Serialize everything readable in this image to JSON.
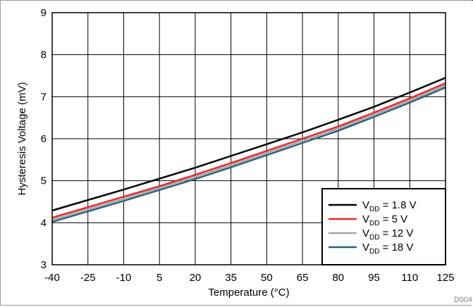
{
  "chart_data": {
    "type": "line",
    "xlabel": "Temperature (°C)",
    "ylabel": "Hysteresis Voltage (mV)",
    "xlim": [
      -40,
      125
    ],
    "ylim": [
      3,
      9
    ],
    "xticks": [
      -40,
      -25,
      -10,
      5,
      20,
      35,
      50,
      65,
      80,
      95,
      110,
      125
    ],
    "yticks": [
      3,
      4,
      5,
      6,
      7,
      8,
      9
    ],
    "grid": true,
    "legend_position": "bottom-right",
    "figure_id": "D004",
    "series": [
      {
        "legend_label": "1.8 V",
        "color": "#000000",
        "x": [
          -40,
          -25,
          -10,
          5,
          20,
          35,
          50,
          65,
          80,
          95,
          110,
          125
        ],
        "y": [
          4.29,
          4.54,
          4.79,
          5.05,
          5.31,
          5.59,
          5.87,
          6.15,
          6.45,
          6.76,
          7.1,
          7.45
        ]
      },
      {
        "legend_label": "5 V",
        "color": "#e8262b",
        "x": [
          -40,
          -25,
          -10,
          5,
          20,
          35,
          50,
          65,
          80,
          95,
          110,
          125
        ],
        "y": [
          4.12,
          4.37,
          4.62,
          4.87,
          5.14,
          5.42,
          5.71,
          6.0,
          6.29,
          6.62,
          6.96,
          7.32
        ]
      },
      {
        "legend_label": "12 V",
        "color": "#a8a8a8",
        "x": [
          -40,
          -25,
          -10,
          5,
          20,
          35,
          50,
          65,
          80,
          95,
          110,
          125
        ],
        "y": [
          4.07,
          4.32,
          4.57,
          4.83,
          5.09,
          5.37,
          5.66,
          5.95,
          6.24,
          6.57,
          6.91,
          7.27
        ]
      },
      {
        "legend_label": "18 V",
        "color": "#2b5f7a",
        "x": [
          -40,
          -25,
          -10,
          5,
          20,
          35,
          50,
          65,
          80,
          95,
          110,
          125
        ],
        "y": [
          4.02,
          4.27,
          4.52,
          4.78,
          5.04,
          5.32,
          5.61,
          5.9,
          6.19,
          6.52,
          6.86,
          7.22
        ]
      }
    ],
    "legend_prefix": "V",
    "legend_sub": "DD",
    "legend_eq": " = "
  }
}
